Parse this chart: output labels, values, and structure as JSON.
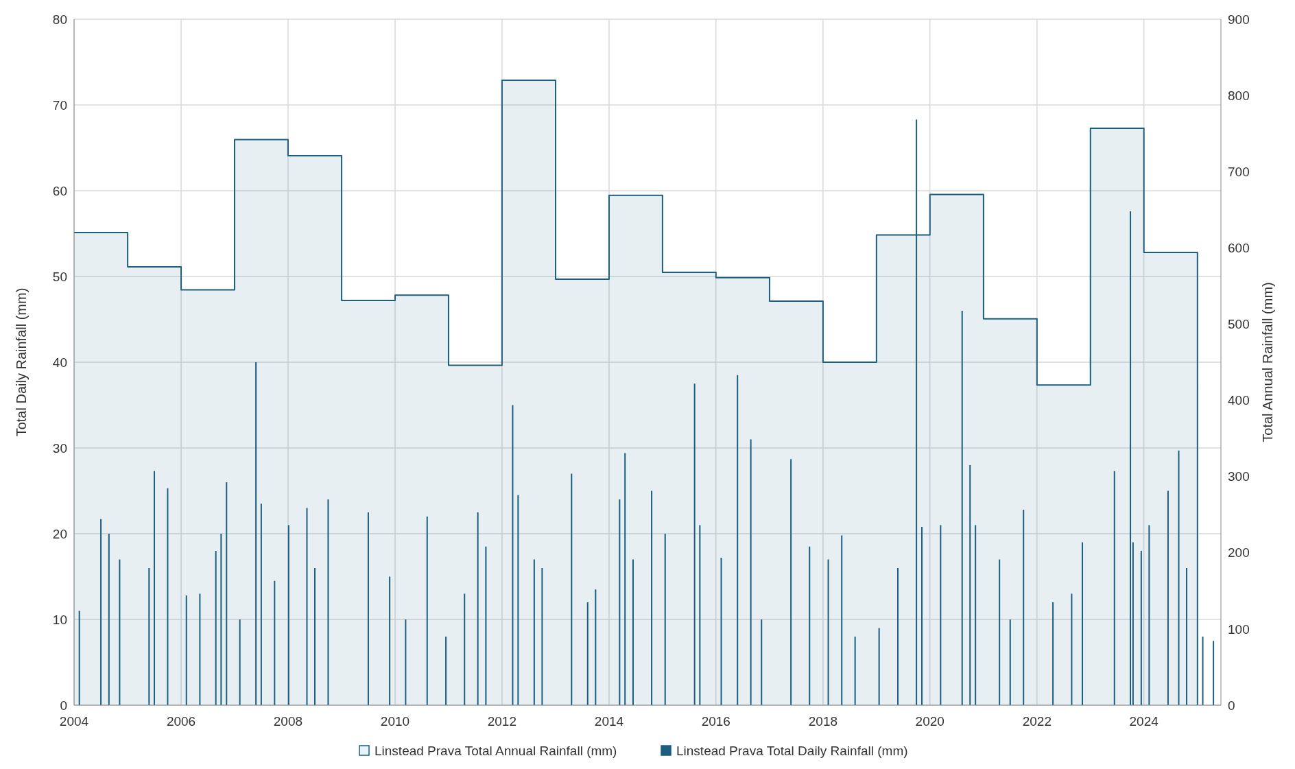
{
  "chart_data": {
    "type": "bar",
    "xlabel": null,
    "ylabel": "Total Daily Rainfall (mm)",
    "y2label": "Total Annual Rainfall (mm)",
    "xlim": [
      "2004-01-01",
      "2025-06-10"
    ],
    "xticks": [
      {
        "value": "2004",
        "label": "2004"
      },
      {
        "value": "2006",
        "label": "2006"
      },
      {
        "value": "2008",
        "label": "2008"
      },
      {
        "value": "2010",
        "label": "2010"
      },
      {
        "value": "2012",
        "label": "2012"
      },
      {
        "value": "2014",
        "label": "2014"
      },
      {
        "value": "2016",
        "label": "2016"
      },
      {
        "value": "2018",
        "label": "2018"
      },
      {
        "value": "2020",
        "label": "2020"
      },
      {
        "value": "2022",
        "label": "2022"
      },
      {
        "value": "2024",
        "label": "2024"
      }
    ],
    "ylim": [
      0,
      80
    ],
    "yticks": [
      0,
      10,
      20,
      30,
      40,
      50,
      60,
      70,
      80
    ],
    "y2lim": [
      0,
      900
    ],
    "y2ticks": [
      0,
      100,
      200,
      300,
      400,
      500,
      600,
      700,
      800,
      900
    ],
    "grid": true,
    "legend": "bottom",
    "series": [
      {
        "name": "Linstead Prava Total Annual Rainfall (mm)",
        "type": "step",
        "axis": "y2",
        "color": "#1b5e7e",
        "x": [
          "2004",
          "2005",
          "2006",
          "2007",
          "2008",
          "2009",
          "2010",
          "2011",
          "2012",
          "2013",
          "2014",
          "2015",
          "2016",
          "2017",
          "2018",
          "2019",
          "2020",
          "2021",
          "2022",
          "2023",
          "2024",
          "2025",
          "2025"
        ],
        "values": [
          620,
          575,
          545,
          742,
          721,
          531,
          538,
          446,
          820,
          559,
          669,
          568,
          561,
          530,
          450,
          617,
          670,
          507,
          420,
          757,
          594,
          594,
          0
        ]
      },
      {
        "name": "Linstead Prava Total Daily Rainfall (mm)",
        "color": "#1a5e80",
        "x": [
          "2004-02-06",
          "2004-07-02",
          "2004-08-26",
          "2004-11-07",
          "2005-05-27",
          "2005-07-02",
          "2005-10-01",
          "2006-02-06",
          "2006-05-09",
          "2006-08-26",
          "2006-10-01",
          "2006-11-07",
          "2007-02-06",
          "2007-05-27",
          "2007-07-02",
          "2007-10-01",
          "2008-01-05",
          "2008-05-09",
          "2008-07-02",
          "2008-10-01",
          "2009-07-02",
          "2009-11-25",
          "2010-03-14",
          "2010-08-08",
          "2010-12-14",
          "2011-04-20",
          "2011-07-20",
          "2011-09-13",
          "2012-03-14",
          "2012-04-20",
          "2012-08-08",
          "2012-10-01",
          "2013-04-20",
          "2013-08-08",
          "2013-10-01",
          "2014-03-14",
          "2014-04-20",
          "2014-06-14",
          "2014-10-19",
          "2015-01-19",
          "2015-08-08",
          "2015-09-13",
          "2016-02-06",
          "2016-05-27",
          "2016-08-26",
          "2016-11-07",
          "2017-05-27",
          "2017-10-01",
          "2018-02-06",
          "2018-05-09",
          "2018-08-08",
          "2019-01-19",
          "2019-05-27",
          "2019-10-01",
          "2019-11-07",
          "2020-03-14",
          "2020-08-08",
          "2020-10-01",
          "2020-11-07",
          "2021-04-20",
          "2021-07-02",
          "2021-10-01",
          "2022-04-20",
          "2022-08-26",
          "2022-11-07",
          "2023-06-14",
          "2023-10-01",
          "2023-10-19",
          "2023-12-14",
          "2024-02-06",
          "2024-06-14",
          "2024-08-26",
          "2024-10-19",
          "2025-02-06",
          "2025-04-20"
        ],
        "values": [
          11,
          21.7,
          20,
          17,
          16,
          27.3,
          25.3,
          12.8,
          13,
          18,
          20,
          26,
          10,
          40,
          23.5,
          14.5,
          21,
          23,
          16,
          24,
          22.5,
          15,
          10,
          22,
          8,
          13,
          22.5,
          18.5,
          35,
          24.5,
          17,
          16,
          27,
          12,
          13.5,
          24,
          29.4,
          17,
          25,
          20,
          37.5,
          21,
          17.2,
          38.5,
          31,
          10,
          28.7,
          18.5,
          17,
          19.8,
          8,
          9,
          16,
          68.3,
          20.8,
          21,
          46,
          28,
          21,
          17,
          10,
          22.8,
          12,
          13,
          19,
          27.3,
          57.6,
          19,
          18,
          21,
          25,
          29.7,
          16,
          8,
          7.5
        ]
      }
    ]
  }
}
